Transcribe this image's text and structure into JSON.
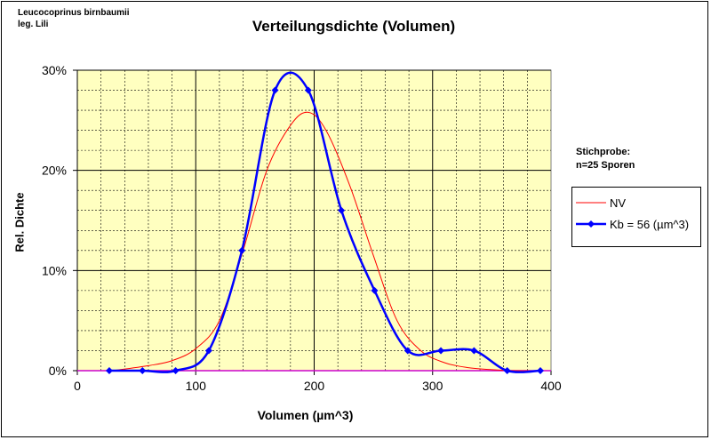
{
  "chart_data": {
    "type": "line",
    "title": "Verteilungsdichte (Volumen)",
    "notes": [
      "Leucocoprinus birnbaumii",
      "leg. Lili"
    ],
    "annotation": [
      "Stichprobe:",
      "n=25 Sporen"
    ],
    "xlabel": "Volumen (µm^3)",
    "ylabel": "Rel. Dichte",
    "xlim": [
      0,
      400
    ],
    "ylim": [
      0,
      30
    ],
    "xticks": [
      "0",
      "100",
      "200",
      "300",
      "400"
    ],
    "yticks": [
      "0%",
      "10%",
      "20%",
      "30%"
    ],
    "grid": true,
    "legend_position": "right",
    "colors": {
      "plot_bg": "#ffffc0",
      "grid": "#000000",
      "nv": "#ff0000",
      "kb": "#0000ff",
      "baseline": "#cc00cc"
    },
    "series": [
      {
        "name": "NV",
        "x": [
          30,
          60,
          80,
          100,
          120,
          140,
          160,
          180,
          195,
          210,
          230,
          250,
          270,
          290,
          310,
          330,
          350,
          370,
          390
        ],
        "values": [
          0,
          0.5,
          1,
          2.2,
          5,
          12,
          20,
          24.5,
          25.8,
          24,
          18.5,
          11.5,
          5,
          2,
          0.8,
          0.3,
          0.1,
          0,
          0
        ]
      },
      {
        "name": "Kb = 56 (µm^3)",
        "x": [
          27,
          55,
          83,
          111,
          139,
          167,
          195,
          223,
          251,
          279,
          307,
          335,
          363,
          391
        ],
        "values": [
          0,
          0,
          0,
          2,
          12,
          28,
          28,
          16,
          8,
          2,
          2,
          2,
          0,
          0
        ],
        "markers": true
      }
    ]
  }
}
